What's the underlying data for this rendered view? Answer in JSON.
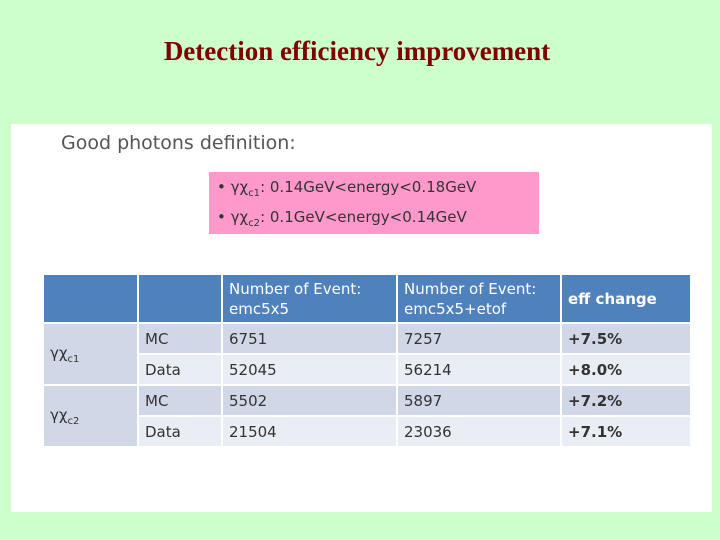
{
  "title": "Detection efficiency improvement",
  "definition": {
    "heading": "Good photons definition:",
    "bullets": [
      {
        "bullet": "•",
        "gamma": "γχ",
        "sub": "c1",
        "rest": ": 0.14GeV<energy<0.18GeV"
      },
      {
        "bullet": "•",
        "gamma": "γχ",
        "sub": "c2",
        "rest": ": 0.1GeV<energy<0.14GeV"
      }
    ]
  },
  "colors": {
    "slide_background": "#ccffcc",
    "title": "#800000",
    "highlight_box": "#ff99cc",
    "table_header": "#4f81bd",
    "row_dark": "#d0d8e8",
    "row_light": "#e9edf4",
    "eff_change": "#c00000"
  },
  "table": {
    "headers": {
      "col1": "",
      "col2": "",
      "col3": "Number of Event: emc5x5",
      "col4": "Number of Event: emc5x5+etof",
      "col5": "eff change"
    },
    "groups": [
      {
        "process": "γχ",
        "process_sub": "c1",
        "rows": [
          {
            "sample": "MC",
            "emc": "6751",
            "emc_etof": "7257",
            "change": "+7.5%"
          },
          {
            "sample": "Data",
            "emc": "52045",
            "emc_etof": "56214",
            "change": "+8.0%"
          }
        ]
      },
      {
        "process": "γχ",
        "process_sub": "c2",
        "rows": [
          {
            "sample": "MC",
            "emc": "5502",
            "emc_etof": "5897",
            "change": "+7.2%"
          },
          {
            "sample": "Data",
            "emc": "21504",
            "emc_etof": "23036",
            "change": "+7.1%"
          }
        ]
      }
    ]
  }
}
